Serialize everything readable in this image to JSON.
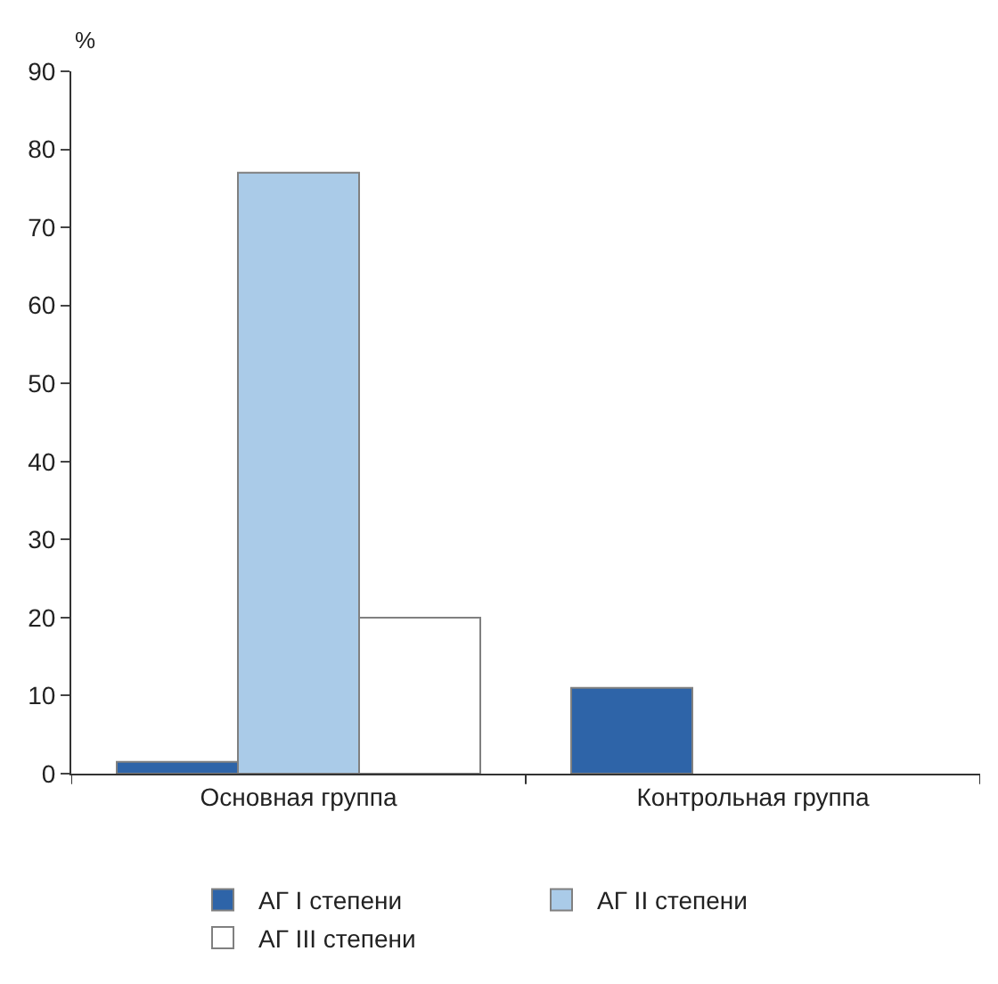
{
  "chart_data": {
    "type": "bar",
    "ylabel": "%",
    "categories": [
      "Основная группа",
      "Контрольная группа"
    ],
    "series": [
      {
        "name": "АГ I степени",
        "color": "#2e64a8",
        "values": [
          1.5,
          11
        ]
      },
      {
        "name": "АГ II степени",
        "color": "#aacbe8",
        "values": [
          77,
          null
        ]
      },
      {
        "name": "АГ III степени",
        "color": "#ffffff",
        "values": [
          20,
          null
        ]
      }
    ],
    "ylim": [
      0,
      90
    ],
    "yticks": [
      0,
      10,
      20,
      30,
      40,
      50,
      60,
      70,
      80,
      90
    ],
    "legend": "bottom"
  }
}
